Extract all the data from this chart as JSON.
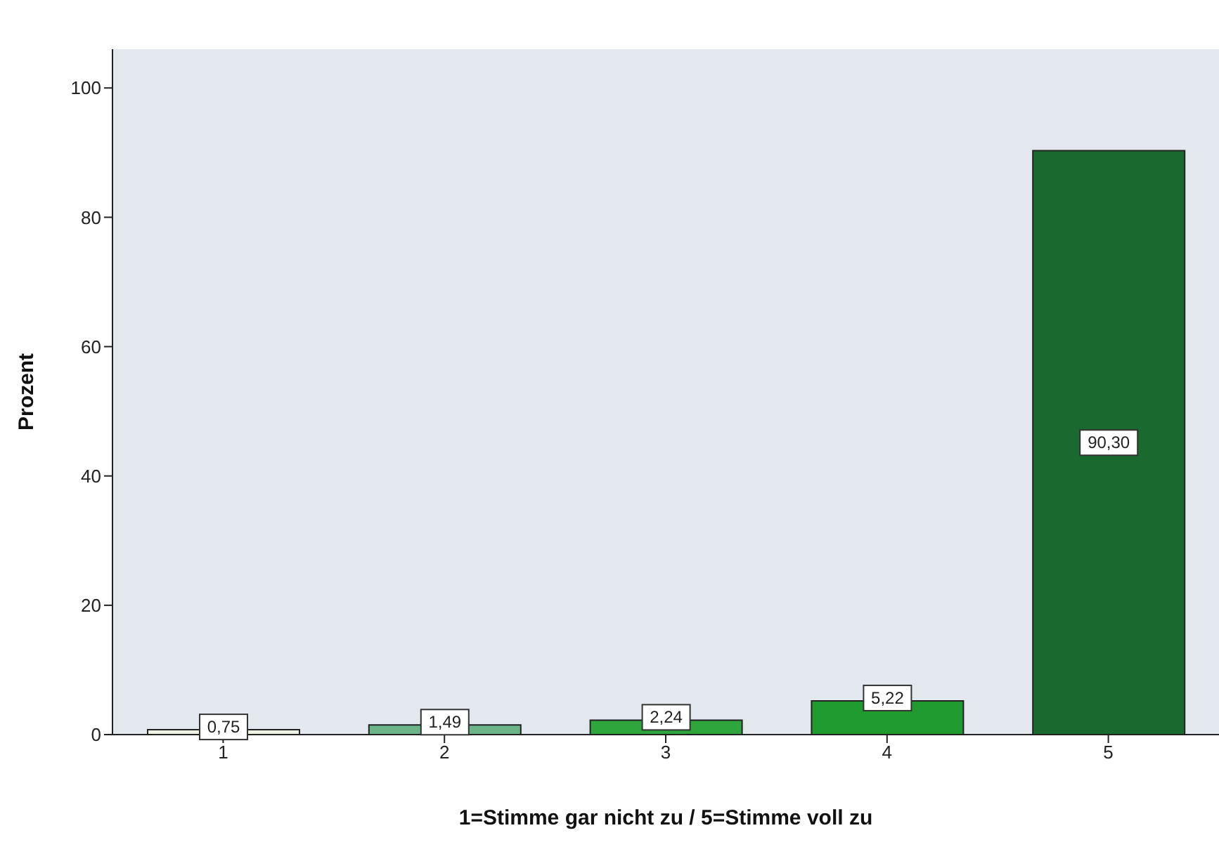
{
  "chart_data": {
    "type": "bar",
    "categories": [
      "1",
      "2",
      "3",
      "4",
      "5"
    ],
    "values": [
      0.75,
      1.49,
      2.24,
      5.22,
      90.3
    ],
    "value_labels": [
      "0,75",
      "1,49",
      "2,24",
      "5,22",
      "90,30"
    ],
    "colors": [
      "#eef3e6",
      "#6db588",
      "#2fa63c",
      "#1f9a2e",
      "#1a6a2f"
    ],
    "xlabel": "1=Stimme gar nicht zu / 5=Stimme voll zu",
    "ylabel": "Prozent",
    "ylim": [
      0,
      106
    ],
    "yticks": [
      0,
      20,
      40,
      60,
      80,
      100
    ],
    "grid": false
  }
}
